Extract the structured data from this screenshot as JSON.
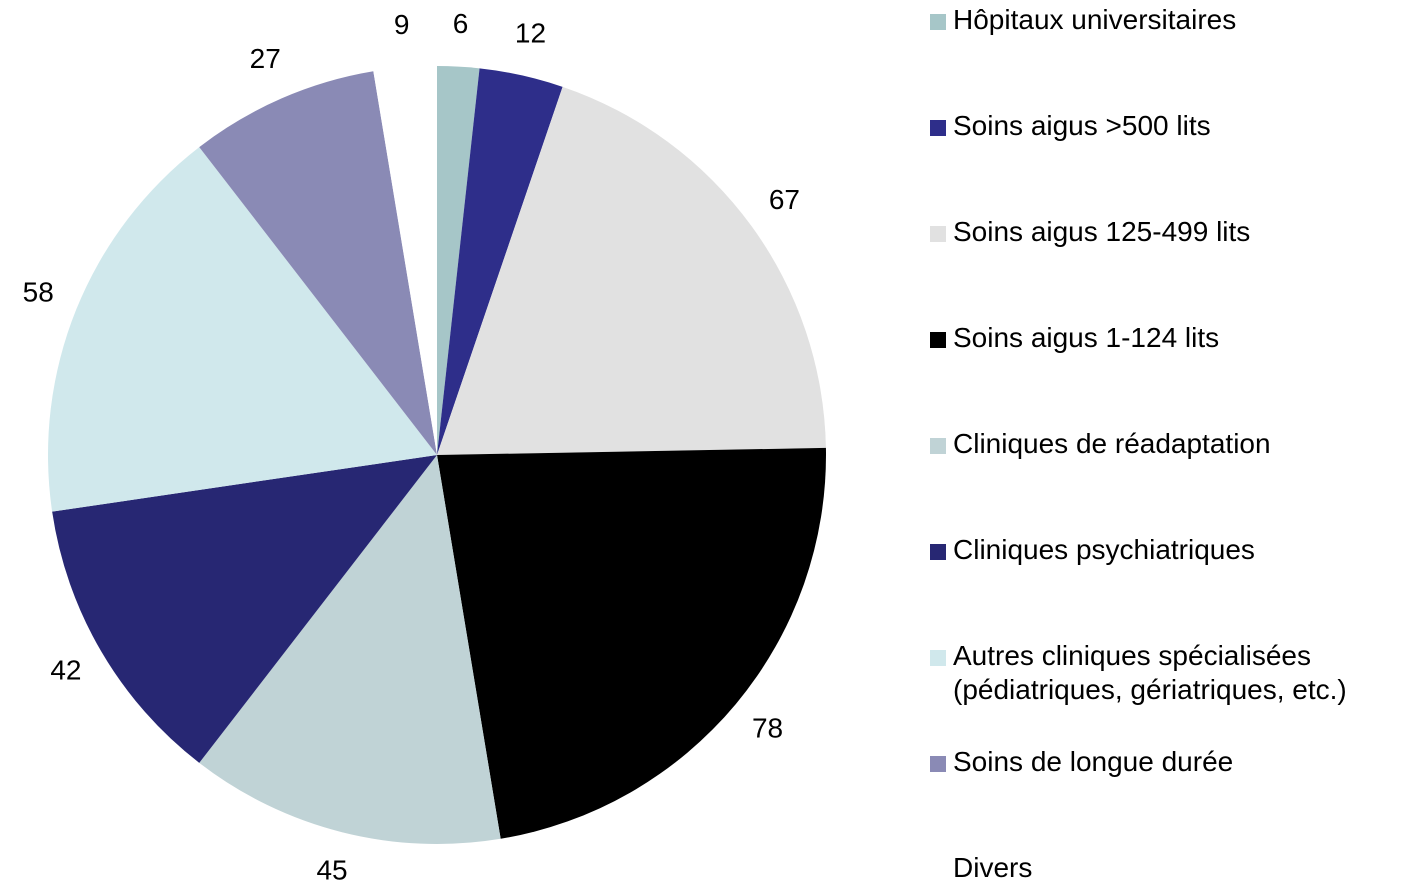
{
  "chart_data": {
    "type": "pie",
    "categories": [
      "Hôpitaux universitaires",
      "Soins aigus >500 lits",
      "Soins aigus 125-499 lits",
      "Soins aigus 1-124 lits",
      "Cliniques de réadaptation",
      "Cliniques psychiatriques",
      "Autres cliniques spécialisées\n(pédiatriques, gériatriques, etc.)",
      "Soins de longue durée",
      "Divers"
    ],
    "values": [
      6,
      12,
      67,
      78,
      45,
      42,
      58,
      27,
      9
    ],
    "colors": [
      "#a6c6c8",
      "#2e2e8a",
      "#e1e1e1",
      "#000000",
      "#c0d3d6",
      "#272773",
      "#d0e8ec",
      "#8a8ab5",
      "#ffffff"
    ],
    "legend": "right"
  }
}
